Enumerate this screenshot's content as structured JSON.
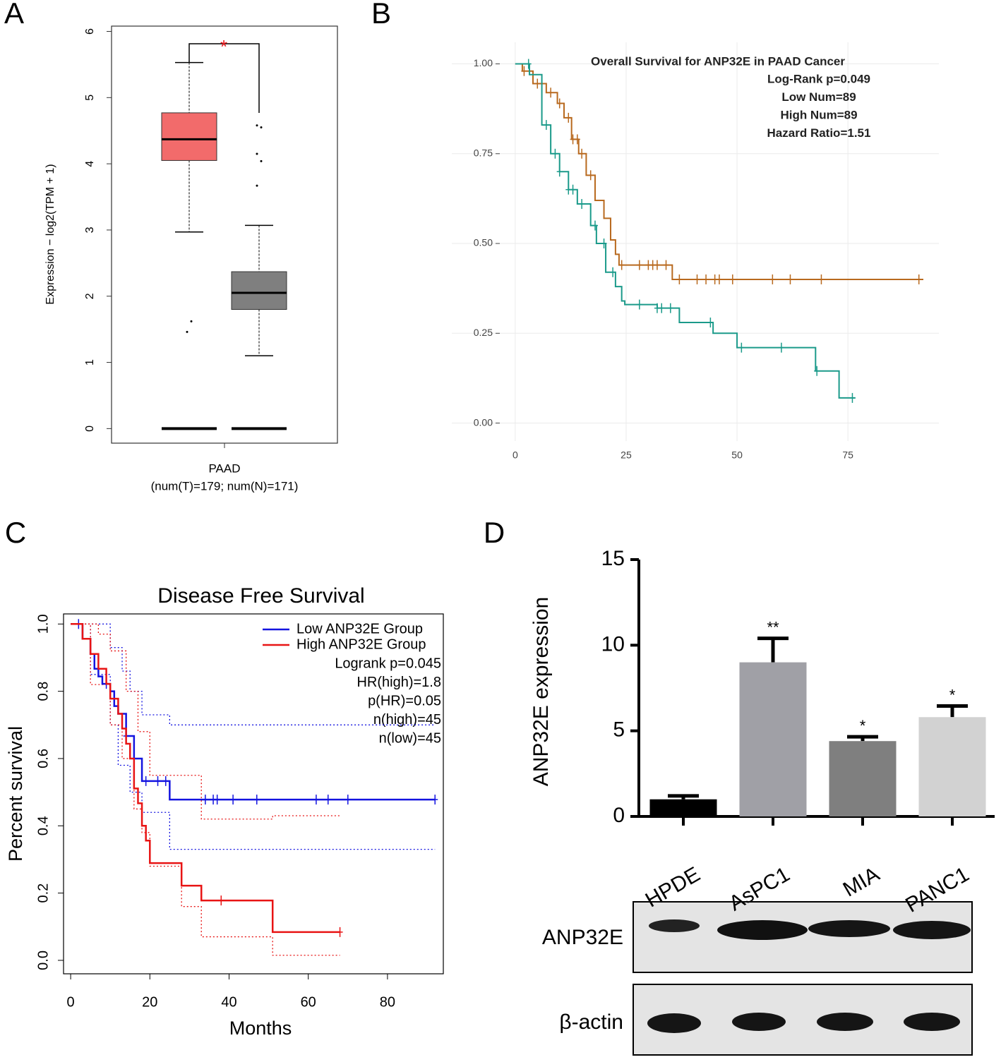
{
  "chart_data": [
    {
      "type": "box",
      "panel": "A",
      "ylabel": "Expression − log2(TPM + 1)",
      "categories": [
        "PAAD"
      ],
      "category_note": "(num(T)=179; num(N)=171)",
      "annotation": "*",
      "ylim": [
        -0.22,
        6.08
      ],
      "yticks": [
        0,
        1,
        2,
        3,
        4,
        5,
        6
      ],
      "boxes": [
        {
          "color": "#f26b6b",
          "whisker_low": 2.97,
          "q1": 4.05,
          "median": 4.37,
          "q3": 4.77,
          "whisker_high": 5.53,
          "outliers": [
            1.46,
            1.62,
            0
          ]
        },
        {
          "color": "#7f7f7f",
          "whisker_low": 1.1,
          "q1": 1.8,
          "median": 2.05,
          "q3": 2.37,
          "whisker_high": 3.07,
          "outliers": [
            4.58,
            4.55,
            4.15,
            4.04,
            3.67,
            0
          ]
        }
      ]
    },
    {
      "type": "survival",
      "panel": "B",
      "title": "Overall Survival for ANP32E in PAAD Cancer",
      "annotations": [
        "Log-Rank p=0.049",
        "Low Num=89",
        "High Num=89",
        "Hazard Ratio=1.51"
      ],
      "xlim": [
        -14.3,
        95.5
      ],
      "ylim": [
        -0.05,
        1.06
      ],
      "grid": true,
      "xticks": [
        0,
        25,
        50,
        75
      ],
      "yticks": [
        {
          "value": 0,
          "label": "0.00"
        },
        {
          "value": 0.25,
          "label": "0.25"
        },
        {
          "value": 0.5,
          "label": "0.50"
        },
        {
          "value": 0.75,
          "label": "0.75"
        },
        {
          "value": 1,
          "label": "1.00"
        }
      ],
      "series": [
        {
          "color": "#b8691e",
          "x": [
            0,
            1.6,
            4,
            7,
            9.5,
            11,
            12.7,
            14.3,
            16,
            18,
            20,
            21.5,
            22.6,
            23.4,
            35.4,
            92
          ],
          "values": [
            1.0,
            0.98,
            0.945,
            0.92,
            0.89,
            0.85,
            0.79,
            0.75,
            0.69,
            0.62,
            0.57,
            0.51,
            0.47,
            0.44,
            0.4,
            0.4
          ],
          "censor_x": [
            2,
            5,
            8,
            10,
            12,
            13,
            14,
            15,
            17,
            24,
            28,
            30,
            31,
            32,
            34,
            37,
            41,
            43,
            45,
            46,
            49,
            58,
            62,
            69,
            91
          ]
        },
        {
          "color": "#1b9a8a",
          "x": [
            0,
            3.2,
            6,
            8,
            10,
            12,
            14,
            17,
            18.3,
            20.4,
            22.6,
            24,
            24.7,
            32,
            37,
            44.6,
            50,
            67.7,
            73,
            76.7
          ],
          "values": [
            1.0,
            0.97,
            0.83,
            0.75,
            0.7,
            0.65,
            0.61,
            0.55,
            0.5,
            0.42,
            0.38,
            0.34,
            0.33,
            0.32,
            0.28,
            0.25,
            0.21,
            0.145,
            0.07,
            0.07
          ],
          "censor_x": [
            3,
            7,
            9,
            10,
            12,
            13,
            15,
            18,
            20,
            22,
            28,
            32,
            33,
            35,
            44,
            51,
            60,
            68,
            76
          ]
        }
      ]
    },
    {
      "type": "survival",
      "panel": "C",
      "title": "Disease Free Survival",
      "xlabel": "Months",
      "ylabel": "Percent survival",
      "annotations": [
        "Logrank p=0.045",
        "HR(high)=1.8",
        "p(HR)=0.05",
        "n(high)=45",
        "n(low)=45"
      ],
      "xlim": [
        -1.8,
        94.1
      ],
      "ylim": [
        -0.04,
        1.03
      ],
      "grid": false,
      "xticks": [
        0,
        20,
        40,
        60,
        80
      ],
      "yticks": [
        {
          "value": 0,
          "label": "0.0"
        },
        {
          "value": 0.2,
          "label": "0.2"
        },
        {
          "value": 0.4,
          "label": "0.4"
        },
        {
          "value": 0.6,
          "label": "0.6"
        },
        {
          "value": 0.8,
          "label": "0.8"
        },
        {
          "value": 1,
          "label": "1.0"
        }
      ],
      "series": [
        {
          "name": "Low ANP32E Group",
          "color": "#1414e0",
          "x": [
            0,
            3,
            5,
            6,
            7,
            8,
            10,
            11,
            12,
            14,
            16,
            18,
            25,
            92
          ],
          "values": [
            1.0,
            0.956,
            0.911,
            0.867,
            0.844,
            0.822,
            0.8,
            0.756,
            0.733,
            0.667,
            0.6,
            0.533,
            0.478,
            0.478
          ],
          "censor_x": [
            2,
            9,
            14,
            19,
            22,
            24,
            34,
            36,
            37,
            41,
            47,
            62,
            65,
            70,
            92
          ]
        },
        {
          "name": "High ANP32E Group",
          "color": "#e81414",
          "x": [
            0,
            3,
            5,
            7,
            9,
            10,
            12,
            13,
            14,
            15,
            16,
            17,
            18,
            19,
            20,
            28,
            33,
            51,
            68
          ],
          "values": [
            1.0,
            0.956,
            0.911,
            0.867,
            0.822,
            0.778,
            0.733,
            0.689,
            0.644,
            0.6,
            0.511,
            0.467,
            0.4,
            0.356,
            0.289,
            0.222,
            0.178,
            0.084,
            0.084
          ],
          "censor_x": [
            38,
            68
          ]
        }
      ],
      "bands": [
        {
          "color": "#1414e0",
          "x": [
            0,
            5,
            10,
            13,
            15,
            18,
            25,
            92
          ],
          "values": [
            1.0,
            1.0,
            0.93,
            0.86,
            0.8,
            0.73,
            0.7,
            0.7
          ]
        },
        {
          "color": "#1414e0",
          "x": [
            0,
            5,
            10,
            12,
            15,
            18,
            25,
            92
          ],
          "values": [
            1.0,
            0.85,
            0.7,
            0.58,
            0.5,
            0.44,
            0.33,
            0.33
          ]
        },
        {
          "color": "#e81414",
          "x": [
            0,
            3,
            7,
            10,
            14,
            17,
            20,
            33,
            51,
            68
          ],
          "values": [
            1.0,
            1.0,
            0.97,
            0.92,
            0.8,
            0.68,
            0.55,
            0.42,
            0.43,
            0.43
          ]
        },
        {
          "color": "#e81414",
          "x": [
            0,
            5,
            10,
            13,
            16,
            18,
            20,
            28,
            33,
            51,
            68
          ],
          "values": [
            1.0,
            0.82,
            0.7,
            0.6,
            0.45,
            0.38,
            0.28,
            0.16,
            0.07,
            0.015,
            0.015
          ]
        }
      ]
    },
    {
      "type": "bar",
      "panel": "D",
      "ylabel": "ANP32E expression",
      "categories": [
        "HPDE",
        "AsPC1",
        "MIA",
        "PANC1"
      ],
      "values": [
        1.0,
        9.0,
        4.4,
        5.8
      ],
      "errors": [
        0.2,
        1.4,
        0.25,
        0.65
      ],
      "colors": [
        "#000000",
        "#a0a0a6",
        "#7f7f7f",
        "#d2d2d2"
      ],
      "significance": [
        null,
        "**",
        "*",
        "*"
      ],
      "ylim": [
        0,
        15
      ],
      "yticks": [
        0,
        5,
        10,
        15
      ],
      "blot_rows": [
        "ANP32E",
        "β-actin"
      ]
    }
  ]
}
